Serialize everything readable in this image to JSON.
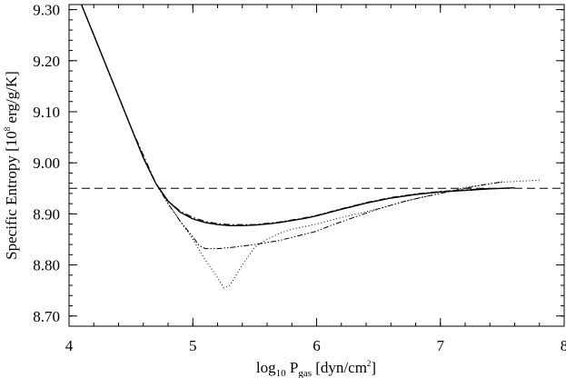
{
  "chart_data": {
    "type": "line",
    "xlabel": {
      "main": "log",
      "sub1": "10",
      "mid": " P",
      "sub2": "gas",
      "unit_pre": " [dyn/cm",
      "sup": "2",
      "unit_post": "]"
    },
    "ylabel": {
      "main": "Specific Entropy [10",
      "sup": "8",
      "unit": " erg/g/K]"
    },
    "xlim": [
      4,
      8
    ],
    "ylim": [
      8.68,
      9.31
    ],
    "xticks": [
      4,
      5,
      6,
      7,
      8
    ],
    "xtick_labels": [
      "4",
      "5",
      "6",
      "7",
      "8"
    ],
    "yticks": [
      8.7,
      8.8,
      8.9,
      9.0,
      9.1,
      9.2,
      9.3
    ],
    "ytick_labels": [
      "8.70",
      "8.80",
      "8.90",
      "9.00",
      "9.10",
      "9.20",
      "9.30"
    ],
    "grid": false,
    "series": [
      {
        "style": "solid",
        "x": [
          4.1,
          4.2,
          4.3,
          4.4,
          4.5,
          4.6,
          4.7,
          4.8,
          4.9,
          5.0,
          5.1,
          5.2,
          5.3,
          5.4,
          5.5,
          5.6,
          5.7,
          5.8,
          5.9,
          6.0,
          6.2,
          6.4,
          6.6,
          6.8,
          7.0,
          7.2,
          7.4,
          7.6
        ],
        "y": [
          9.31,
          9.25,
          9.19,
          9.13,
          9.07,
          9.01,
          8.96,
          8.925,
          8.903,
          8.89,
          8.883,
          8.879,
          8.877,
          8.877,
          8.878,
          8.88,
          8.883,
          8.887,
          8.891,
          8.896,
          8.909,
          8.921,
          8.931,
          8.938,
          8.943,
          8.946,
          8.949,
          8.951
        ]
      },
      {
        "style": "dash-dot",
        "x": [
          4.1,
          4.3,
          4.5,
          4.7,
          4.8,
          4.9,
          5.0,
          5.1,
          5.2,
          5.3,
          5.5,
          5.7,
          5.9,
          6.0,
          6.2,
          6.4,
          6.6,
          6.8,
          7.0,
          7.2,
          7.4
        ],
        "y": [
          9.31,
          9.19,
          9.07,
          8.96,
          8.925,
          8.905,
          8.893,
          8.885,
          8.881,
          8.879,
          8.879,
          8.884,
          8.892,
          8.897,
          8.91,
          8.922,
          8.932,
          8.939,
          8.944,
          8.947,
          8.95
        ]
      },
      {
        "style": "dash-dot-dot",
        "x": [
          4.6,
          4.7,
          4.8,
          4.9,
          5.0,
          5.05,
          5.1,
          5.2,
          5.3,
          5.5,
          5.7,
          5.9,
          6.0,
          6.1,
          6.3,
          6.5,
          6.7,
          6.9,
          7.1,
          7.3,
          7.5
        ],
        "y": [
          9.01,
          8.96,
          8.92,
          8.885,
          8.855,
          8.838,
          8.832,
          8.832,
          8.834,
          8.84,
          8.848,
          8.86,
          8.866,
          8.876,
          8.893,
          8.91,
          8.924,
          8.935,
          8.945,
          8.955,
          8.963
        ]
      },
      {
        "style": "dotted",
        "x": [
          4.6,
          4.7,
          4.8,
          4.9,
          5.0,
          5.1,
          5.2,
          5.25,
          5.3,
          5.4,
          5.5,
          5.6,
          5.7,
          5.8,
          6.0,
          6.2,
          6.5,
          6.8,
          7.0,
          7.2,
          7.5,
          7.8
        ],
        "y": [
          9.01,
          8.96,
          8.92,
          8.885,
          8.85,
          8.81,
          8.775,
          8.755,
          8.76,
          8.8,
          8.835,
          8.85,
          8.862,
          8.87,
          8.88,
          8.893,
          8.91,
          8.93,
          8.94,
          8.952,
          8.962,
          8.966
        ]
      },
      {
        "style": "dashed-reference",
        "x": [
          4.0,
          8.0
        ],
        "y": [
          8.95,
          8.95
        ]
      }
    ]
  }
}
